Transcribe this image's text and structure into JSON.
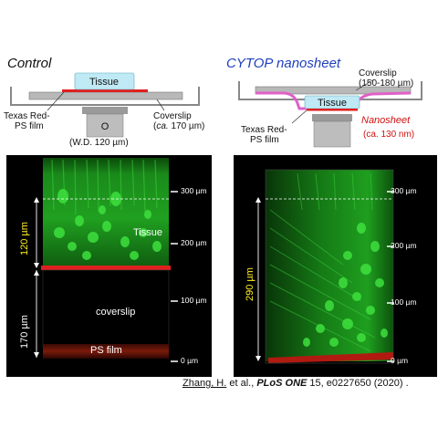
{
  "left": {
    "title": "Control",
    "tissue_label": "Tissue",
    "film_label_line1": "Texas Red-",
    "film_label_line2": "PS film",
    "coverslip_label_line1": "Coverslip",
    "coverslip_label_line2_pre": "(",
    "coverslip_label_line2_italic": "ca.",
    "coverslip_label_line2_post": " 170 µm)",
    "objective_letter": "O",
    "wd_label": "(W.D. 120 µm)",
    "image": {
      "region_tissue": "Tissue",
      "region_coverslip": "coverslip",
      "region_film": "PS film",
      "dim_120": "120 µm",
      "dim_170": "170 µm",
      "ticks": [
        "300 µm",
        "200 µm",
        "100 µm",
        "0 µm"
      ]
    }
  },
  "right": {
    "title": "CYTOP nanosheet",
    "tissue_label": "Tissue",
    "coverslip_label_line1": "Coverslip",
    "coverslip_label_line2": "(150-180 µm)",
    "film_label_line1": "Texas Red-",
    "film_label_line2": "PS film",
    "nanosheet_label": "Nanosheet",
    "nanosheet_thickness": "(ca. 130 nm)",
    "image": {
      "dim_290": "290 µm",
      "ticks": [
        "300 µm",
        "200 µm",
        "100 µm",
        "0 µm"
      ]
    }
  },
  "citation": {
    "author": "Zhang, H.",
    "mid": " et al., ",
    "journal": "PLoS ONE",
    "rest": " 15, e0227650 (2020) ."
  },
  "colors": {
    "tissue_fill": "#bfe9f5",
    "film_red": "#e02020",
    "nanosheet_pink": "#e060c8",
    "cytop_blue": "#1f3fbf",
    "neuron_green": "#22c422",
    "scale_yellow": "#ffee22"
  }
}
